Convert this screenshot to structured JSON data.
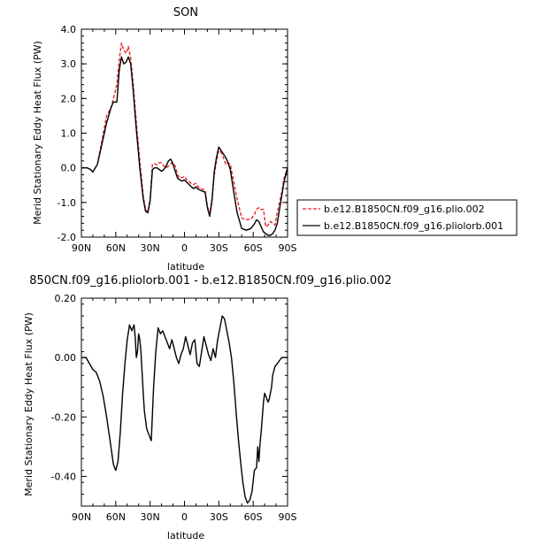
{
  "chart_data": [
    {
      "type": "line",
      "title": "SON",
      "xlabel": "latitude",
      "ylabel": "Merid Stationary Eddy Heat Flux (PW)",
      "xticks": [
        "90N",
        "60N",
        "30N",
        "0",
        "30S",
        "60S",
        "90S"
      ],
      "yticks": [
        "-2.0",
        "-1.0",
        "0.0",
        "1.0",
        "2.0",
        "3.0",
        "4.0"
      ],
      "xlim": [
        -90,
        90
      ],
      "ylim": [
        -2.0,
        4.0
      ],
      "x_axis_direction": "north-to-south",
      "grid": false,
      "legend_position": "right",
      "series": [
        {
          "name": "b.e12.B1850CN.f09_g16.plio.002",
          "color": "#e8242a",
          "style": "dashed",
          "x": [
            -90,
            -85,
            -82,
            -80,
            -76,
            -72,
            -68,
            -64,
            -62,
            -59,
            -57,
            -55,
            -53,
            -51,
            -49,
            -47,
            -45,
            -42,
            -39,
            -36,
            -34,
            -32,
            -30,
            -28,
            -26,
            -24,
            -22,
            -20,
            -18,
            -16,
            -14,
            -12,
            -10,
            -8,
            -6,
            -4,
            -2,
            0,
            2,
            4,
            6,
            8,
            10,
            12,
            14,
            16,
            18,
            20,
            22,
            24,
            26,
            28,
            30,
            32,
            34,
            36,
            38,
            40,
            43,
            46,
            50,
            54,
            58,
            61,
            63,
            65,
            67,
            69,
            71,
            73,
            75,
            77,
            79,
            81,
            83,
            85,
            87,
            90
          ],
          "y": [
            0.0,
            0.0,
            -0.05,
            -0.12,
            0.1,
            0.8,
            1.5,
            1.75,
            2.0,
            2.4,
            3.1,
            3.6,
            3.4,
            3.3,
            3.5,
            3.15,
            2.5,
            1.3,
            0.2,
            -0.8,
            -1.2,
            -1.28,
            -0.9,
            0.1,
            0.12,
            0.08,
            0.15,
            0.15,
            0.05,
            0.0,
            0.05,
            0.12,
            0.15,
            0.05,
            -0.2,
            -0.3,
            -0.28,
            -0.25,
            -0.35,
            -0.4,
            -0.45,
            -0.48,
            -0.45,
            -0.55,
            -0.6,
            -0.62,
            -0.65,
            -1.1,
            -1.35,
            -0.9,
            -0.2,
            0.2,
            0.5,
            0.45,
            0.3,
            0.1,
            0.15,
            0.1,
            -0.4,
            -0.9,
            -1.45,
            -1.5,
            -1.48,
            -1.35,
            -1.2,
            -1.15,
            -1.2,
            -1.2,
            -1.7,
            -1.65,
            -1.55,
            -1.6,
            -1.65,
            -1.3,
            -1.0,
            -0.7,
            -0.3,
            0.0
          ]
        },
        {
          "name": "b.e12.B1850CN.f09_g16.pliolorb.001",
          "color": "#000000",
          "style": "solid",
          "x": [
            -90,
            -85,
            -82,
            -80,
            -76,
            -72,
            -68,
            -64,
            -62,
            -59,
            -57,
            -55,
            -53,
            -51,
            -49,
            -47,
            -45,
            -42,
            -39,
            -36,
            -34,
            -32,
            -30,
            -28,
            -26,
            -24,
            -22,
            -20,
            -18,
            -16,
            -14,
            -12,
            -10,
            -8,
            -6,
            -4,
            -2,
            0,
            2,
            4,
            6,
            8,
            10,
            12,
            14,
            16,
            18,
            20,
            22,
            24,
            26,
            28,
            30,
            32,
            34,
            36,
            38,
            40,
            43,
            46,
            50,
            54,
            58,
            61,
            63,
            65,
            67,
            69,
            71,
            73,
            75,
            77,
            79,
            81,
            83,
            85,
            87,
            90
          ],
          "y": [
            0.0,
            0.0,
            -0.05,
            -0.12,
            0.1,
            0.7,
            1.3,
            1.75,
            1.9,
            1.9,
            2.8,
            3.2,
            3.0,
            3.05,
            3.2,
            3.0,
            2.3,
            1.1,
            0.0,
            -0.9,
            -1.25,
            -1.3,
            -0.95,
            -0.05,
            0.0,
            0.0,
            -0.05,
            -0.1,
            -0.05,
            0.05,
            0.2,
            0.25,
            0.1,
            -0.1,
            -0.3,
            -0.35,
            -0.38,
            -0.35,
            -0.42,
            -0.48,
            -0.55,
            -0.6,
            -0.55,
            -0.62,
            -0.65,
            -0.68,
            -0.7,
            -1.15,
            -1.4,
            -0.95,
            -0.1,
            0.3,
            0.6,
            0.5,
            0.4,
            0.3,
            0.15,
            -0.05,
            -0.7,
            -1.3,
            -1.75,
            -1.8,
            -1.75,
            -1.62,
            -1.5,
            -1.55,
            -1.7,
            -1.85,
            -1.9,
            -1.95,
            -1.95,
            -1.9,
            -1.8,
            -1.6,
            -1.2,
            -0.8,
            -0.4,
            0.0
          ]
        }
      ]
    },
    {
      "type": "line",
      "title": "850CN.f09_g16.pliolorb.001 - b.e12.B1850CN.f09_g16.plio.002",
      "xlabel": "latitude",
      "ylabel": "Merid Stationary Eddy Heat Flux (PW)",
      "xticks": [
        "90N",
        "60N",
        "30N",
        "0",
        "30S",
        "60S",
        "90S"
      ],
      "yticks": [
        "-0.40",
        "-0.20",
        "0.00",
        "0.20"
      ],
      "xlim": [
        -90,
        90
      ],
      "ylim": [
        -0.5,
        0.2
      ],
      "x_axis_direction": "north-to-south",
      "grid": false,
      "series": [
        {
          "color": "#000000",
          "style": "solid",
          "x": [
            -90,
            -86,
            -83,
            -80,
            -77,
            -74,
            -71,
            -68,
            -65,
            -62,
            -60,
            -58,
            -56,
            -54,
            -52,
            -50,
            -48,
            -46,
            -44,
            -43,
            -42,
            -41,
            -40,
            -39,
            -38,
            -37,
            -36,
            -35,
            -33,
            -31,
            -29,
            -27,
            -25,
            -23,
            -21,
            -19,
            -17,
            -15,
            -13,
            -11,
            -9,
            -7,
            -5,
            -3,
            -1,
            1,
            3,
            5,
            7,
            9,
            11,
            13,
            15,
            17,
            19,
            21,
            23,
            25,
            27,
            29,
            31,
            33,
            35,
            37,
            39,
            41,
            43,
            45,
            47,
            49,
            51,
            53,
            55,
            57,
            59,
            61,
            63,
            64,
            65,
            66,
            67,
            68,
            69,
            70,
            71,
            72,
            73,
            74,
            75,
            76,
            77,
            79,
            81,
            83,
            85,
            87,
            90
          ],
          "y": [
            0.0,
            0.0,
            -0.02,
            -0.04,
            -0.05,
            -0.08,
            -0.13,
            -0.2,
            -0.28,
            -0.36,
            -0.38,
            -0.35,
            -0.25,
            -0.12,
            -0.02,
            0.06,
            0.11,
            0.09,
            0.11,
            0.07,
            0.0,
            0.02,
            0.08,
            0.06,
            0.02,
            -0.05,
            -0.12,
            -0.18,
            -0.24,
            -0.26,
            -0.28,
            -0.1,
            0.02,
            0.1,
            0.08,
            0.09,
            0.07,
            0.05,
            0.03,
            0.06,
            0.03,
            0.0,
            -0.02,
            0.01,
            0.03,
            0.07,
            0.04,
            0.01,
            0.05,
            0.06,
            -0.02,
            -0.03,
            0.02,
            0.07,
            0.04,
            0.01,
            -0.01,
            0.03,
            0.0,
            0.06,
            0.1,
            0.14,
            0.13,
            0.09,
            0.05,
            0.0,
            -0.08,
            -0.18,
            -0.27,
            -0.35,
            -0.42,
            -0.47,
            -0.49,
            -0.48,
            -0.45,
            -0.38,
            -0.37,
            -0.3,
            -0.35,
            -0.29,
            -0.25,
            -0.2,
            -0.15,
            -0.12,
            -0.13,
            -0.14,
            -0.15,
            -0.14,
            -0.12,
            -0.1,
            -0.06,
            -0.03,
            -0.02,
            -0.01,
            0.0,
            0.0,
            0.0
          ]
        }
      ]
    }
  ]
}
